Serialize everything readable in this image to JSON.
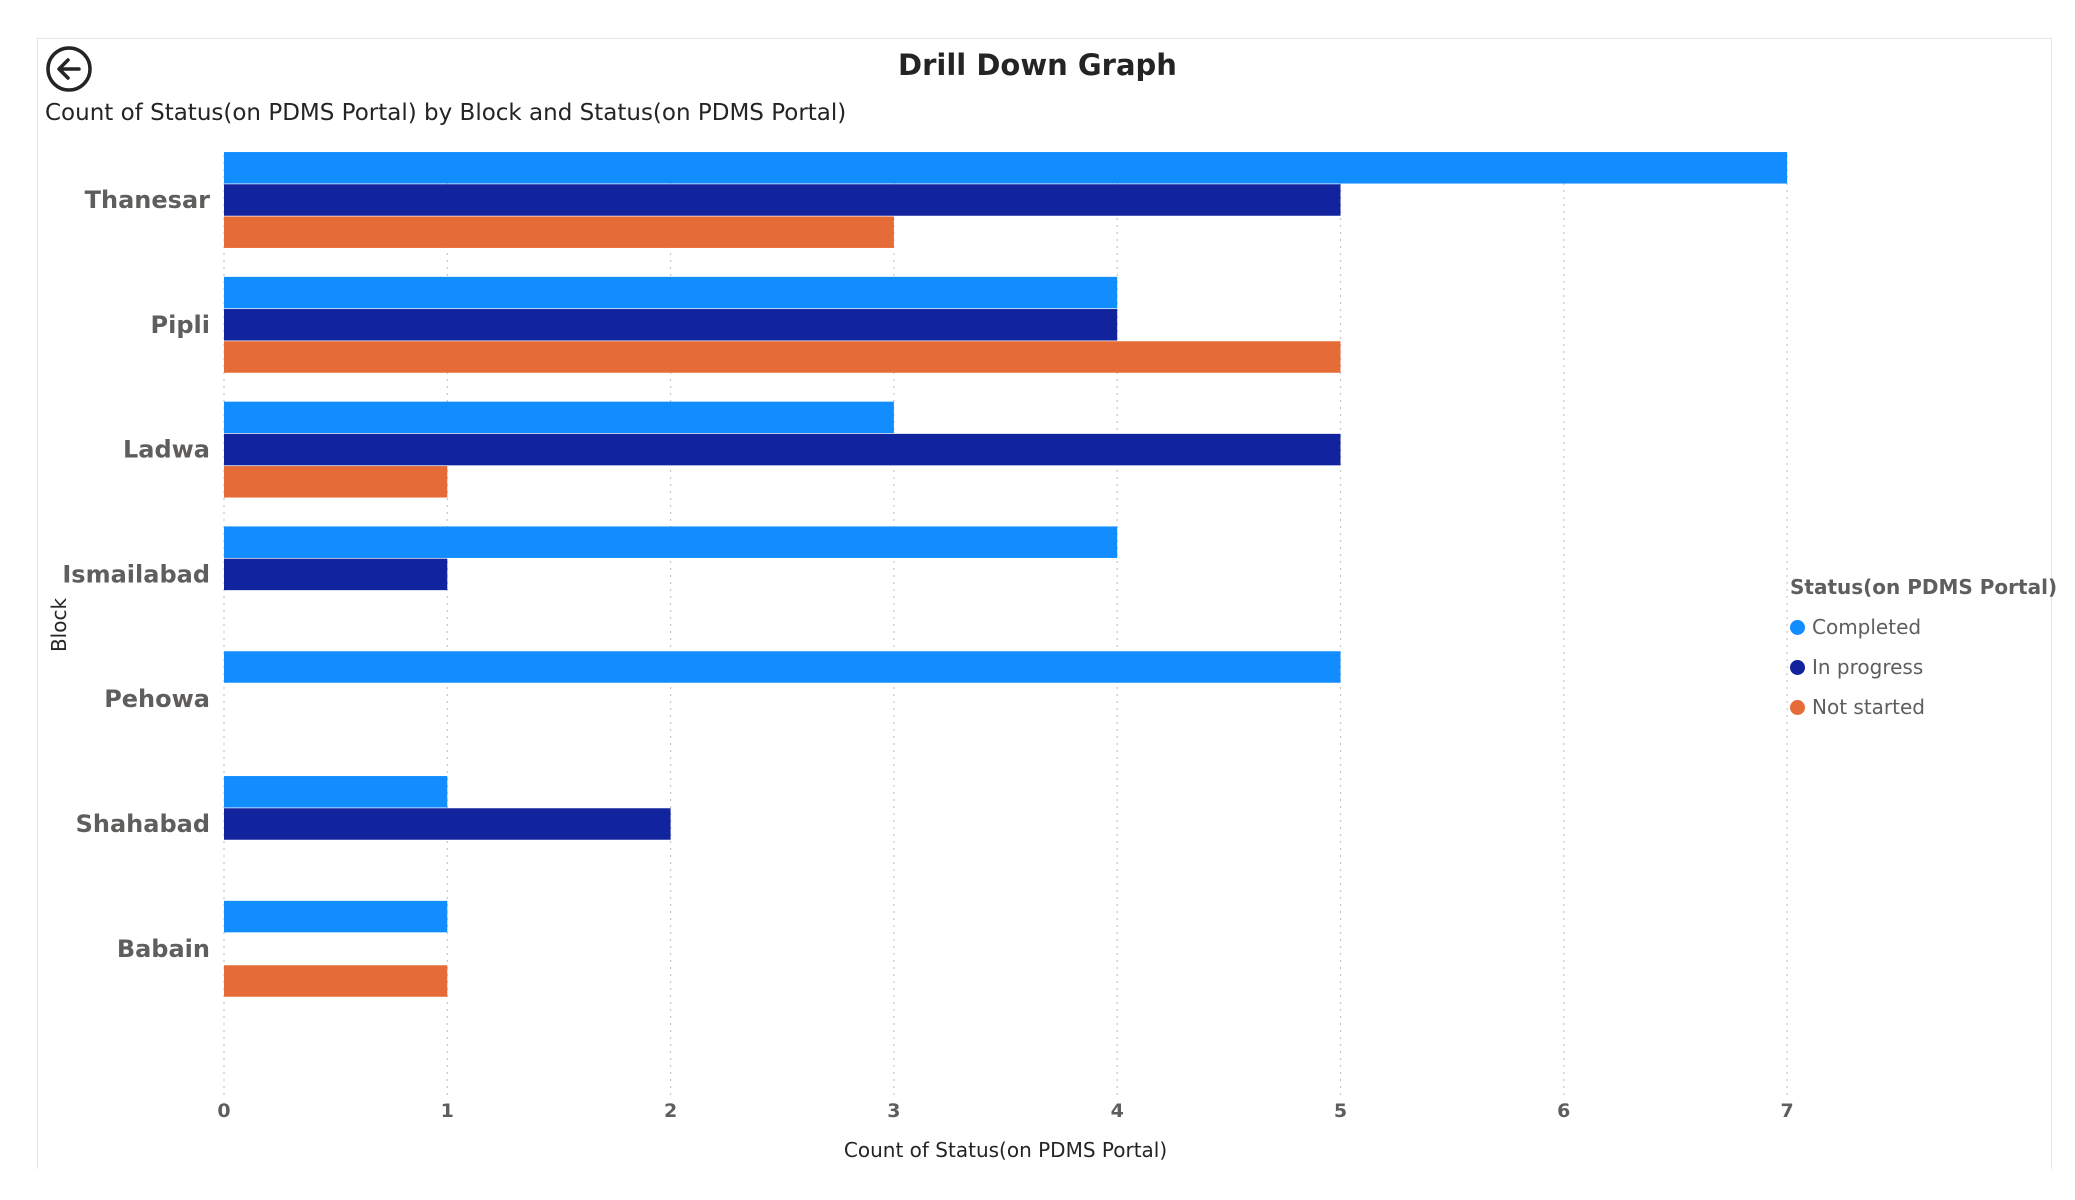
{
  "header": {
    "title": "Drill Down Graph",
    "back_icon": "arrow-left-circle-icon"
  },
  "colors": {
    "Completed": "#118dff",
    "In progress": "#12239e",
    "Not started": "#e66c37"
  },
  "chart_data": {
    "type": "bar",
    "orientation": "horizontal",
    "title": "Count of Status(on PDMS Portal) by Block and Status(on PDMS Portal)",
    "xlabel": "Count of Status(on PDMS Portal)",
    "ylabel": "Block",
    "categories": [
      "Thanesar",
      "Pipli",
      "Ladwa",
      "Ismailabad",
      "Pehowa",
      "Shahabad",
      "Babain"
    ],
    "series": [
      {
        "name": "Completed",
        "values": [
          7,
          4,
          3,
          4,
          5,
          1,
          1
        ]
      },
      {
        "name": "In progress",
        "values": [
          5,
          4,
          5,
          1,
          null,
          2,
          null
        ]
      },
      {
        "name": "Not started",
        "values": [
          3,
          5,
          1,
          null,
          null,
          null,
          1
        ]
      }
    ],
    "xlim": [
      0,
      7
    ],
    "xticks": [
      "0",
      "1",
      "2",
      "3",
      "4",
      "5",
      "6",
      "7"
    ],
    "grid": "vertical-dotted",
    "legend": {
      "title": "Status(on PDMS Portal)",
      "position": "right",
      "items": [
        "Completed",
        "In progress",
        "Not started"
      ]
    }
  }
}
